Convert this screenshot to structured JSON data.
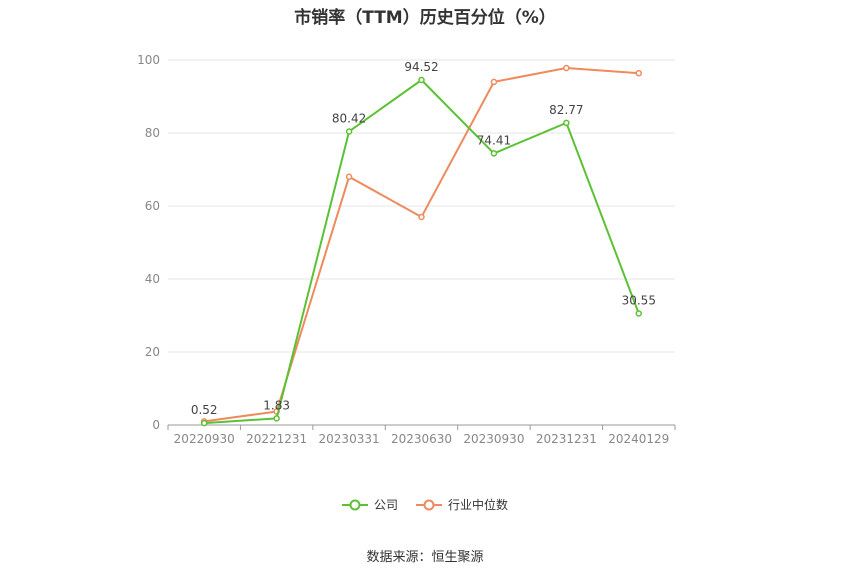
{
  "title": "市销率（TTM）历史百分位（%）",
  "source": "数据来源：恒生聚源",
  "chart_data": {
    "type": "line",
    "categories": [
      "20220930",
      "20221231",
      "20230331",
      "20230630",
      "20230930",
      "20231231",
      "20240129"
    ],
    "ylim": [
      0,
      100
    ],
    "yticks": [
      0,
      20,
      40,
      60,
      80,
      100
    ],
    "grid": true,
    "legend_position": "bottom",
    "series": [
      {
        "name": "公司",
        "color": "#5ac234",
        "values": [
          0.52,
          1.83,
          80.42,
          94.52,
          74.41,
          82.77,
          30.55
        ],
        "labels": [
          "0.52",
          "1.83",
          "80.42",
          "94.52",
          "74.41",
          "82.77",
          "30.55"
        ]
      },
      {
        "name": "行业中位数",
        "color": "#ef8a5c",
        "values": [
          1.0,
          3.7,
          68.0,
          57.0,
          94.0,
          97.8,
          96.4
        ],
        "labels": []
      }
    ]
  }
}
